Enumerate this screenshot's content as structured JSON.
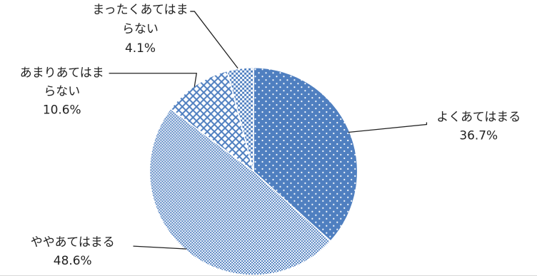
{
  "chart_data": {
    "type": "pie",
    "title": "",
    "start_angle_deg": 0,
    "slices": [
      {
        "label": "よくあてはまる",
        "value": 36.7,
        "value_text": "36.7%",
        "color": "#4f7fc0",
        "pattern": "dots"
      },
      {
        "label": "ややあてはまる",
        "value": 48.6,
        "value_text": "48.6%",
        "color": "#4f7fc0",
        "pattern": "fine-check"
      },
      {
        "label": "あまりあてはまらない",
        "value": 10.6,
        "value_text": "10.6%",
        "color": "#4f7fc0",
        "pattern": "brick"
      },
      {
        "label": "まったくあてはまらない",
        "value": 4.1,
        "value_text": "4.1%",
        "color": "#4f7fc0",
        "pattern": "checker"
      }
    ]
  }
}
